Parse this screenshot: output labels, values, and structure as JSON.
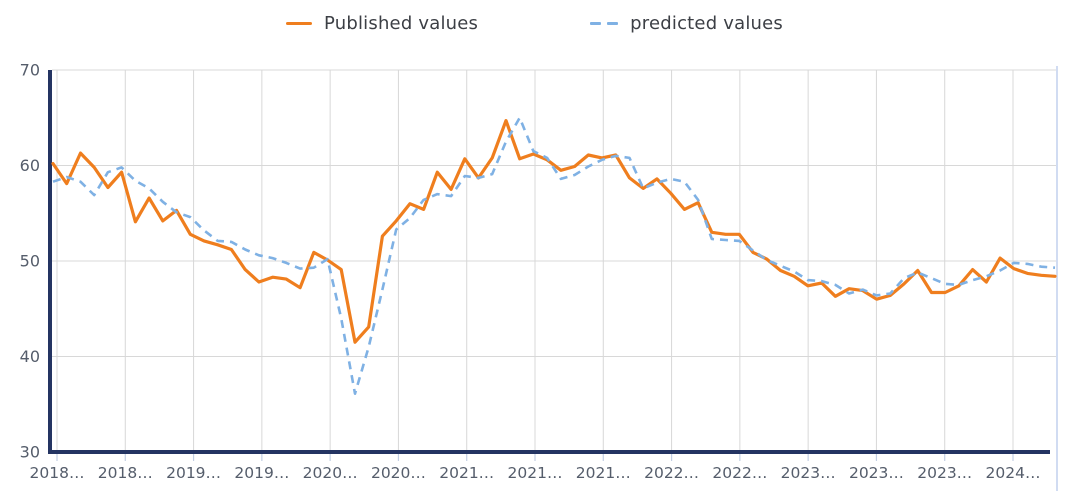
{
  "legend": {
    "published_label": "Published values",
    "predicted_label": "predicted values"
  },
  "colors": {
    "published": "#ef7e1e",
    "predicted": "#7fb1e4",
    "axis": "#243462",
    "gridline": "#d8d8d8",
    "right_border": "#ccd9f0",
    "tick_mark": "#c3cfe4",
    "axis_label_text": "#555d6b",
    "background": "#ffffff"
  },
  "chart_data": {
    "type": "line",
    "title": "",
    "xlabel": "",
    "ylabel": "",
    "ylim": [
      30,
      70
    ],
    "grid": true,
    "legend_position": "top-center",
    "y_tick_labels": [
      "70",
      "60",
      "50",
      "40",
      "30"
    ],
    "y_tick_values": [
      70,
      60,
      50,
      40,
      30
    ],
    "x_tick_labels": [
      "2018…",
      "2018…",
      "2019…",
      "2019…",
      "2020…",
      "2020…",
      "2021…",
      "2021…",
      "2021…",
      "2022…",
      "2022…",
      "2023…",
      "2023…",
      "2023…",
      "2024…"
    ],
    "x_unit": "monthly points, Jun 2018 – Jul 2024, ticks every 5 months",
    "series": [
      {
        "name": "Published values",
        "style": "solid",
        "color": "#ef7e1e",
        "values": [
          60.2,
          58.1,
          61.3,
          59.8,
          57.7,
          59.3,
          54.1,
          56.6,
          54.2,
          55.3,
          52.8,
          52.1,
          51.7,
          51.2,
          49.1,
          47.8,
          48.3,
          48.1,
          47.2,
          50.9,
          50.1,
          49.1,
          41.5,
          43.1,
          52.6,
          54.2,
          56.0,
          55.4,
          59.3,
          57.5,
          60.7,
          58.7,
          60.8,
          64.7,
          60.7,
          61.2,
          60.6,
          59.5,
          59.9,
          61.1,
          60.8,
          61.1,
          58.7,
          57.6,
          58.6,
          57.1,
          55.4,
          56.1,
          53.0,
          52.8,
          52.8,
          50.9,
          50.2,
          49.0,
          48.4,
          47.4,
          47.7,
          46.3,
          47.1,
          46.9,
          46.0,
          46.4,
          47.6,
          49.0,
          46.7,
          46.7,
          47.4,
          49.1,
          47.8,
          50.3,
          49.2,
          48.7,
          48.5,
          48.4
        ]
      },
      {
        "name": "predicted values",
        "style": "dashed",
        "color": "#7fb1e4",
        "values": [
          58.3,
          58.8,
          58.3,
          56.9,
          59.3,
          59.8,
          58.4,
          57.6,
          56.2,
          55.1,
          54.6,
          53.2,
          52.1,
          52.0,
          51.2,
          50.6,
          50.3,
          49.8,
          49.2,
          49.3,
          50.2,
          44.0,
          36.1,
          41.0,
          47.0,
          53.3,
          54.5,
          56.4,
          57.0,
          56.8,
          58.9,
          58.7,
          59.1,
          62.5,
          65.0,
          61.5,
          60.8,
          58.6,
          59.0,
          59.9,
          60.6,
          61.0,
          60.8,
          57.6,
          58.2,
          58.6,
          58.3,
          56.4,
          52.3,
          52.2,
          52.1,
          51.1,
          50.1,
          49.5,
          48.9,
          48.0,
          47.9,
          47.5,
          46.6,
          47.0,
          46.4,
          46.6,
          48.2,
          48.8,
          48.2,
          47.6,
          47.5,
          48.0,
          48.4,
          49.0,
          49.8,
          49.7,
          49.4,
          49.3
        ]
      }
    ]
  }
}
